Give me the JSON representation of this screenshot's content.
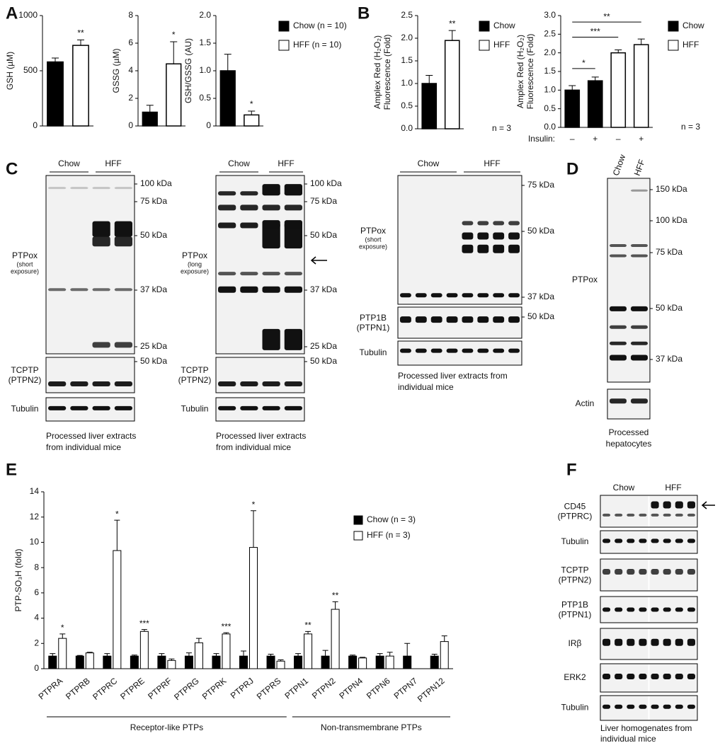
{
  "panels": [
    "A",
    "B",
    "C",
    "D",
    "E",
    "F"
  ],
  "chart_data": [
    {
      "type": "bar",
      "ylabel": "GSH (µM)",
      "values": [
        580,
        730
      ],
      "errors": [
        35,
        50
      ],
      "significance": [
        null,
        "**"
      ],
      "bar_colors": [
        "#000000",
        "#ffffff"
      ],
      "ylim": [
        0,
        1000
      ],
      "yticks": [
        0,
        500,
        1000
      ]
    },
    {
      "type": "bar",
      "ylabel": "GSSG (µM)",
      "values": [
        1.0,
        4.5
      ],
      "errors": [
        0.5,
        1.6
      ],
      "significance": [
        null,
        "*"
      ],
      "bar_colors": [
        "#000000",
        "#ffffff"
      ],
      "ylim": [
        0,
        8
      ],
      "yticks": [
        0,
        2,
        4,
        6,
        8
      ]
    },
    {
      "type": "bar",
      "ylabel": "GSH/GSSG (AU)",
      "values": [
        1.0,
        0.2
      ],
      "errors": [
        0.3,
        0.07
      ],
      "significance": [
        null,
        "*"
      ],
      "bar_colors": [
        "#000000",
        "#ffffff"
      ],
      "ylim": [
        0,
        2
      ],
      "yticks": [
        0,
        0.5,
        {
          "value": 1,
          "label": "1.0"
        },
        1.5,
        {
          "value": 2,
          "label": "2.0"
        }
      ],
      "legend": [
        {
          "name": "Chow (n = 10)",
          "color": "#000000"
        },
        {
          "name": "HFF (n = 10)",
          "color": "#ffffff"
        }
      ]
    },
    {
      "type": "bar",
      "ylabel": [
        "Amplex Red (H₂O₂)",
        "Fluorescence (Fold)"
      ],
      "values": [
        1.0,
        1.95
      ],
      "errors": [
        0.18,
        0.22
      ],
      "significance": [
        null,
        "**"
      ],
      "bar_colors": [
        "#000000",
        "#ffffff"
      ],
      "ylim": [
        0,
        2.5
      ],
      "yticks": [
        {
          "value": 0,
          "label": "0.0"
        },
        0.5,
        {
          "value": 1,
          "label": "1.0"
        },
        1.5,
        {
          "value": 2,
          "label": "2.0"
        },
        2.5
      ],
      "note": "n = 3",
      "legend": [
        {
          "name": "Chow",
          "color": "#000000"
        },
        {
          "name": "HFF",
          "color": "#ffffff"
        }
      ]
    },
    {
      "type": "bar",
      "ylabel": [
        "Amplex Red (H₂O₂)",
        "Fluorescence (Fold)"
      ],
      "categories": [
        "–",
        "+",
        "–",
        "+"
      ],
      "category_title": "Insulin:",
      "values": [
        1.0,
        1.25,
        2.0,
        2.22
      ],
      "errors": [
        0.12,
        0.1,
        0.08,
        0.15
      ],
      "bar_colors": [
        "#000000",
        "#000000",
        "#ffffff",
        "#ffffff"
      ],
      "brackets": [
        {
          "from": 0,
          "to": 1,
          "label": "*"
        },
        {
          "from": 0,
          "to": 2,
          "label": "***"
        },
        {
          "from": 0,
          "to": 3,
          "label": "**"
        }
      ],
      "ylim": [
        0,
        3
      ],
      "yticks": [
        {
          "value": 0,
          "label": "0.0"
        },
        0.5,
        {
          "value": 1,
          "label": "1.0"
        },
        1.5,
        {
          "value": 2,
          "label": "2.0"
        },
        2.5,
        {
          "value": 3,
          "label": "3.0"
        }
      ],
      "note": "n = 3",
      "legend": [
        {
          "name": "Chow",
          "color": "#000000"
        },
        {
          "name": "HFF",
          "color": "#ffffff"
        }
      ]
    },
    {
      "type": "grouped_bar",
      "ylabel": "PTP-SO₃H (fold)",
      "categories": [
        "PTPRA",
        "PTPRB",
        "PTPRC",
        "PTPRE",
        "PTPRF",
        "PTPRG",
        "PTPRK",
        "PTPRJ",
        "PTPRS",
        "PTPN1",
        "PTPN2",
        "PTPN4",
        "PTPN6",
        "PTPN7",
        "PTPN12"
      ],
      "series": [
        {
          "name": "Chow (n = 3)",
          "color": "#000000",
          "values": [
            1,
            1,
            1,
            1,
            1,
            1,
            1,
            1,
            1,
            1,
            1,
            1,
            1,
            1,
            1
          ],
          "errors": [
            0.2,
            0.05,
            0.2,
            0.08,
            0.2,
            0.25,
            0.2,
            0.4,
            0.15,
            0.2,
            0.45,
            0.08,
            0.2,
            1.0,
            0.15
          ],
          "significance": [
            null,
            null,
            null,
            null,
            null,
            null,
            null,
            null,
            null,
            null,
            null,
            null,
            null,
            null,
            null
          ]
        },
        {
          "name": "HFF (n = 3)",
          "color": "#ffffff",
          "values": [
            2.4,
            1.25,
            9.35,
            2.95,
            0.65,
            2.05,
            2.75,
            9.6,
            0.6,
            2.75,
            4.7,
            0.85,
            1.0,
            null,
            2.15
          ],
          "errors": [
            0.35,
            0.05,
            2.4,
            0.15,
            0.12,
            0.35,
            0.1,
            2.9,
            0.1,
            0.2,
            0.6,
            0.05,
            0.3,
            null,
            0.45
          ],
          "significance": [
            "*",
            null,
            "*",
            "***",
            null,
            null,
            "***",
            "*",
            null,
            "**",
            "**",
            null,
            null,
            null,
            null
          ]
        }
      ],
      "groups": [
        {
          "label": "Receptor-like PTPs",
          "from": 0,
          "to": 8
        },
        {
          "label": "Non-transmembrane PTPs",
          "from": 9,
          "to": 14
        }
      ],
      "ylim": [
        0,
        14
      ],
      "yticks": [
        0,
        2,
        4,
        6,
        8,
        10,
        12,
        14
      ]
    }
  ],
  "blots": [
    {
      "lanes": [
        "Chow",
        "HFF"
      ],
      "rows": [
        {
          "label": [
            "PTPox"
          ],
          "note": [
            "(short",
            "exposure)"
          ],
          "markers": [
            "100 kDa",
            "75 kDa",
            "50 kDa",
            "37 kDa",
            "25 kDa"
          ]
        },
        {
          "label": [
            "TCPTP",
            "(PTPN2)"
          ],
          "markers": [
            "50 kDa"
          ]
        },
        {
          "label": [
            "Tubulin"
          ],
          "markers": []
        }
      ],
      "caption": [
        "Processed liver extracts",
        "from individual mice"
      ]
    },
    {
      "lanes": [
        "Chow",
        "HFF"
      ],
      "rows": [
        {
          "label": [
            "PTPox"
          ],
          "note": [
            "(long",
            "exposure)"
          ],
          "markers": [
            "100 kDa",
            "75 kDa",
            "50 kDa",
            "37 kDa",
            "25 kDa"
          ]
        },
        {
          "label": [
            "TCPTP",
            "(PTPN2)"
          ],
          "markers": [
            "50 kDa"
          ]
        },
        {
          "label": [
            "Tubulin"
          ],
          "markers": []
        }
      ],
      "caption": [
        "Processed liver extracts",
        "from individual mice"
      ]
    },
    {
      "lanes": [
        "Chow",
        "HFF"
      ],
      "rows": [
        {
          "label": [
            "PTPox"
          ],
          "note": [
            "(short",
            "exposure)"
          ],
          "markers": [
            "75 kDa",
            "50 kDa",
            "37 kDa"
          ]
        },
        {
          "label": [
            "PTP1B",
            "(PTPN1)"
          ],
          "markers": [
            "50 kDa"
          ]
        },
        {
          "label": [
            "Tubulin"
          ],
          "markers": []
        }
      ],
      "caption": [
        "Processed liver extracts from",
        "individual mice"
      ]
    },
    {
      "lanes": [
        "Chow",
        "HFF"
      ],
      "rows": [
        {
          "label": [
            "PTPox"
          ],
          "markers": [
            "150 kDa",
            "100 kDa",
            "75 kDa",
            "50 kDa",
            "37 kDa"
          ]
        },
        {
          "label": [
            "Actin"
          ],
          "markers": []
        }
      ],
      "caption": [
        "Processed",
        "hepatocytes"
      ]
    },
    {
      "lanes": [
        "Chow",
        "HFF"
      ],
      "rows": [
        {
          "label": [
            "CD45",
            "(PTPRC)"
          ],
          "markers": []
        },
        {
          "label": [
            "Tubulin"
          ],
          "markers": []
        },
        {
          "label": [
            "TCPTP",
            "(PTPN2)"
          ],
          "markers": []
        },
        {
          "label": [
            "PTP1B",
            "(PTPN1)"
          ],
          "markers": []
        },
        {
          "label": [
            "IRβ"
          ],
          "markers": []
        },
        {
          "label": [
            "ERK2"
          ],
          "markers": []
        },
        {
          "label": [
            "Tubulin"
          ],
          "markers": []
        }
      ],
      "caption": [
        "Liver homogenates from",
        "individual mice"
      ]
    }
  ]
}
